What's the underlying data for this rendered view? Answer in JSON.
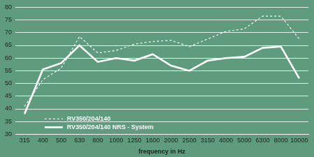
{
  "chart_data": {
    "type": "line",
    "x_label": "frequency in Hz",
    "categories": [
      "315",
      "400",
      "500",
      "630",
      "800",
      "1000",
      "1250",
      "1600",
      "2000",
      "2500",
      "3150",
      "4000",
      "5000",
      "6300",
      "8000",
      "10000"
    ],
    "series": [
      {
        "name": "RV350/204/140",
        "color": "#ffffff",
        "line_style": "dashed",
        "marker": "none",
        "values": [
          41,
          51.5,
          56,
          68.5,
          62,
          63,
          65.5,
          66.5,
          67,
          64.5,
          67.5,
          70.5,
          71.5,
          76.5,
          76.5,
          67.5
        ]
      },
      {
        "name": "RV350/204/140 NRS - System",
        "color": "#ffffff",
        "line_style": "solid",
        "marker": "none",
        "values": [
          38,
          55.5,
          58,
          65,
          58.5,
          60,
          59,
          61.5,
          57,
          55,
          59,
          60,
          60.5,
          64,
          64.5,
          52
        ]
      }
    ],
    "ylim": [
      30,
      80
    ],
    "yticks": [
      30,
      35,
      40,
      45,
      50,
      55,
      60,
      65,
      70,
      75,
      80
    ],
    "grid": true,
    "legend": "lower left"
  }
}
